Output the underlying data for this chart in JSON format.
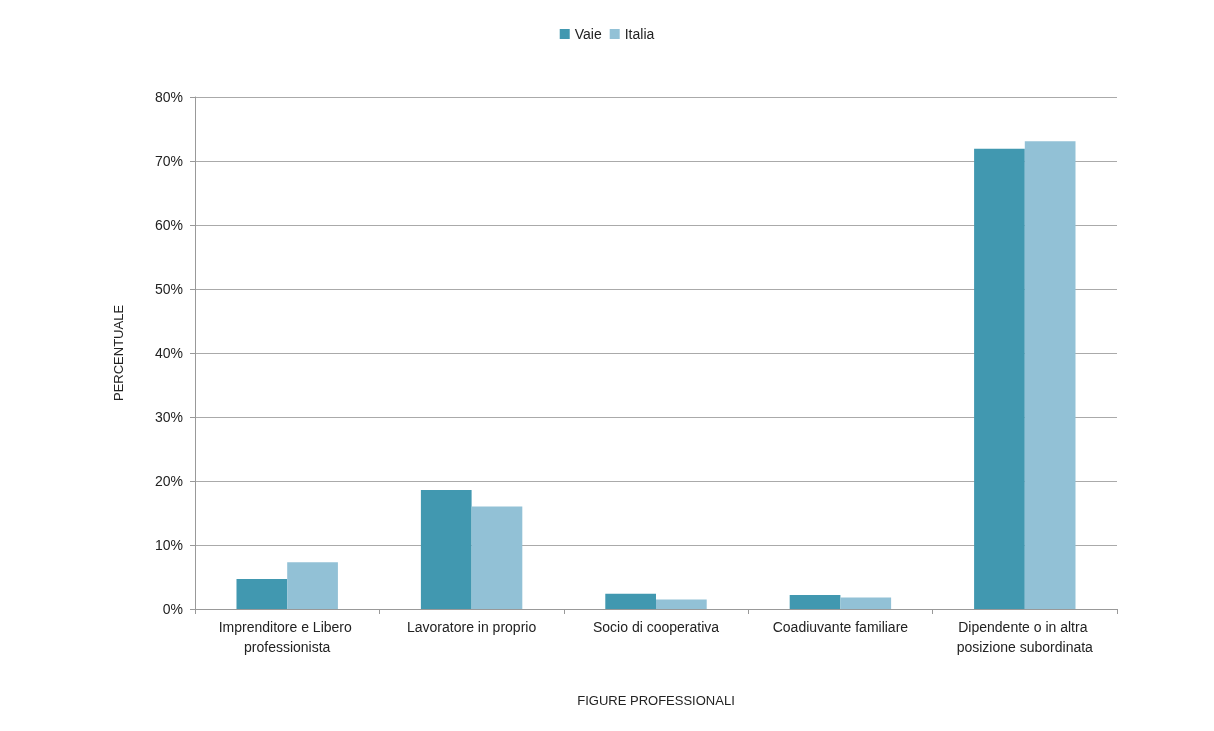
{
  "chart_data": {
    "type": "bar",
    "xlabel": "FIGURE PROFESSIONALI",
    "ylabel": "PERCENTUALE",
    "categories": [
      "Imprenditore e Libero professionista",
      "Lavoratore in proprio",
      "Socio di cooperativa",
      "Coadiuvante familiare",
      "Dipendente o in altra posizione subordinata"
    ],
    "series": [
      {
        "name": "Vaie",
        "color": "#4198b0",
        "values": [
          4.7,
          18.6,
          2.4,
          2.2,
          71.9
        ]
      },
      {
        "name": "Italia",
        "color": "#92c1d6",
        "values": [
          7.3,
          16.0,
          1.5,
          1.8,
          73.1
        ]
      }
    ],
    "ylim": [
      0,
      80
    ],
    "yticks": [
      {
        "value": 0,
        "label": "0%"
      },
      {
        "value": 10,
        "label": "10%"
      },
      {
        "value": 20,
        "label": "20%"
      },
      {
        "value": 30,
        "label": "30%"
      },
      {
        "value": 40,
        "label": "40%"
      },
      {
        "value": 50,
        "label": "50%"
      },
      {
        "value": 60,
        "label": "60%"
      },
      {
        "value": 70,
        "label": "70%"
      },
      {
        "value": 80,
        "label": "80%"
      }
    ],
    "grid": "y",
    "legend": "top"
  }
}
